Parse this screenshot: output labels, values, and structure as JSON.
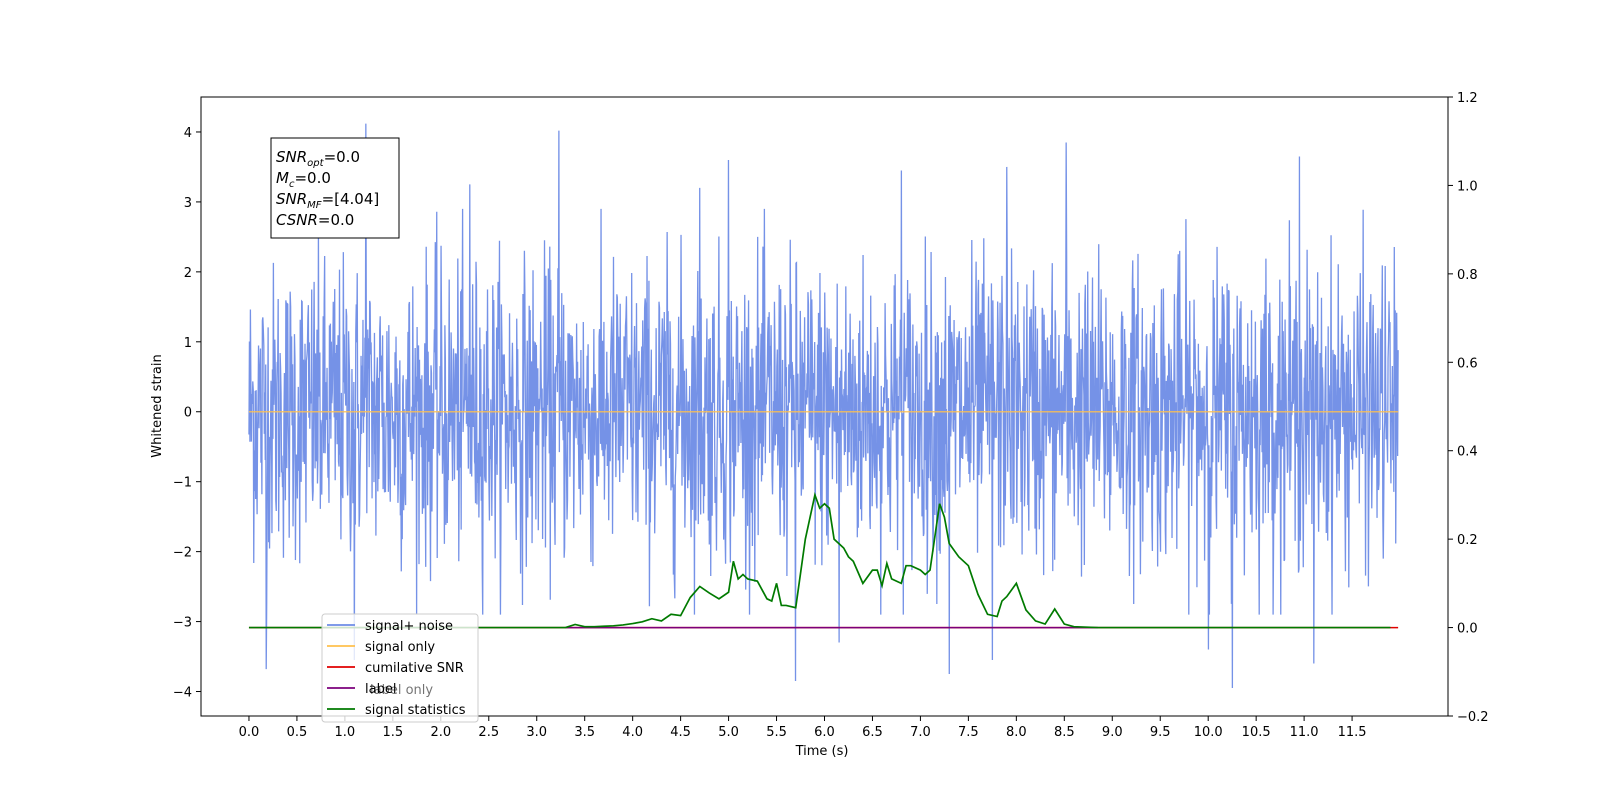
{
  "chart_data": {
    "type": "line",
    "title": "",
    "xlabel": "Time (s)",
    "ylabel": "Whitened strain",
    "xlim": [
      -0.5,
      12.5
    ],
    "ylim": [
      -4.35,
      4.5
    ],
    "y2lim": [
      -0.2,
      1.2
    ],
    "grid": false,
    "legend_position": "lower-left",
    "x_ticks": [
      "0.0",
      "0.5",
      "1.0",
      "1.5",
      "2.0",
      "2.5",
      "3.0",
      "3.5",
      "4.0",
      "4.5",
      "5.0",
      "5.5",
      "6.0",
      "6.5",
      "7.0",
      "7.5",
      "8.0",
      "8.5",
      "9.0",
      "9.5",
      "10.0",
      "10.5",
      "11.0",
      "11.5"
    ],
    "y_ticks": [
      "4",
      "3",
      "2",
      "1",
      "0",
      "−1",
      "−2",
      "−3",
      "−4"
    ],
    "y2_ticks": [
      "1.2",
      "1.0",
      "0.8",
      "0.6",
      "0.4",
      "0.2",
      "0.0",
      "−0.2"
    ],
    "noise_series": {
      "name": "signal+ noise",
      "color": "#6e8ce6",
      "x_start": 0.0,
      "x_end": 11.98,
      "samples": 2400,
      "typical_range": [
        -2.5,
        2.5
      ],
      "peaks": [
        {
          "x": 1.22,
          "y": 4.12
        },
        {
          "x": 3.23,
          "y": 4.02
        },
        {
          "x": 8.52,
          "y": 3.85
        },
        {
          "x": 10.95,
          "y": 3.65
        },
        {
          "x": 5.0,
          "y": 3.6
        },
        {
          "x": 7.9,
          "y": 3.5
        },
        {
          "x": 2.3,
          "y": 3.25
        },
        {
          "x": 4.7,
          "y": 3.2
        },
        {
          "x": 6.8,
          "y": 3.45
        },
        {
          "x": 0.18,
          "y": -3.68
        },
        {
          "x": 5.7,
          "y": -3.85
        },
        {
          "x": 10.25,
          "y": -3.95
        },
        {
          "x": 7.3,
          "y": -3.75
        },
        {
          "x": 1.1,
          "y": -3.55
        },
        {
          "x": 11.1,
          "y": -3.6
        },
        {
          "x": 7.75,
          "y": -3.55
        },
        {
          "x": 6.15,
          "y": -3.3
        },
        {
          "x": 10.0,
          "y": -3.4
        }
      ]
    },
    "series": [
      {
        "name": "signal only",
        "color": "#ffc04d",
        "axis": "left",
        "x": [
          0.0,
          11.98
        ],
        "values": [
          0.0,
          0.0
        ]
      },
      {
        "name": "cumilative SNR",
        "color": "#e00000",
        "axis": "right",
        "x": [
          0.0,
          11.98
        ],
        "values": [
          0.0,
          0.0
        ]
      },
      {
        "name": "label",
        "color": "#7b007b",
        "axis": "right",
        "x": [
          3.3,
          8.85
        ],
        "values": [
          0.0,
          0.0
        ]
      },
      {
        "name": "signal statistics",
        "color": "#007a00",
        "axis": "right",
        "x": [
          0.0,
          3.3,
          3.4,
          3.5,
          3.6,
          3.7,
          3.8,
          3.9,
          4.0,
          4.1,
          4.2,
          4.3,
          4.4,
          4.5,
          4.6,
          4.7,
          4.8,
          4.9,
          5.0,
          5.05,
          5.1,
          5.15,
          5.2,
          5.3,
          5.4,
          5.45,
          5.5,
          5.55,
          5.6,
          5.7,
          5.8,
          5.9,
          5.95,
          6.0,
          6.05,
          6.1,
          6.2,
          6.25,
          6.3,
          6.4,
          6.5,
          6.55,
          6.6,
          6.65,
          6.7,
          6.8,
          6.85,
          6.9,
          7.0,
          7.05,
          7.1,
          7.2,
          7.25,
          7.3,
          7.4,
          7.5,
          7.6,
          7.7,
          7.8,
          7.85,
          7.9,
          8.0,
          8.1,
          8.2,
          8.3,
          8.4,
          8.5,
          8.6,
          8.85,
          11.9
        ],
        "values": [
          0.0,
          0.0,
          0.007,
          0.002,
          0.002,
          0.003,
          0.004,
          0.006,
          0.009,
          0.013,
          0.02,
          0.015,
          0.03,
          0.027,
          0.068,
          0.093,
          0.078,
          0.065,
          0.08,
          0.15,
          0.11,
          0.12,
          0.11,
          0.105,
          0.065,
          0.06,
          0.1,
          0.05,
          0.05,
          0.045,
          0.2,
          0.3,
          0.27,
          0.28,
          0.27,
          0.2,
          0.18,
          0.16,
          0.15,
          0.1,
          0.13,
          0.13,
          0.095,
          0.145,
          0.11,
          0.1,
          0.14,
          0.14,
          0.13,
          0.12,
          0.13,
          0.28,
          0.25,
          0.19,
          0.16,
          0.14,
          0.075,
          0.03,
          0.025,
          0.06,
          0.07,
          0.1,
          0.04,
          0.015,
          0.008,
          0.042,
          0.008,
          0.002,
          0.0,
          0.0
        ]
      }
    ],
    "legend": [
      "signal+ noise",
      "signal only",
      "cumilative SNR",
      "label",
      "signal statistics"
    ],
    "annotation": {
      "lines": [
        {
          "base": "SNR",
          "sub": "opt",
          "rest": "=0.0"
        },
        {
          "base": "M",
          "sub": "c",
          "rest": "=0.0"
        },
        {
          "base": "SNR",
          "sub": "MF",
          "rest": "=[4.04]"
        },
        {
          "base": "CSNR",
          "sub": "",
          "rest": "=0.0"
        }
      ]
    },
    "legend_overlap_text": [
      "label only"
    ]
  }
}
